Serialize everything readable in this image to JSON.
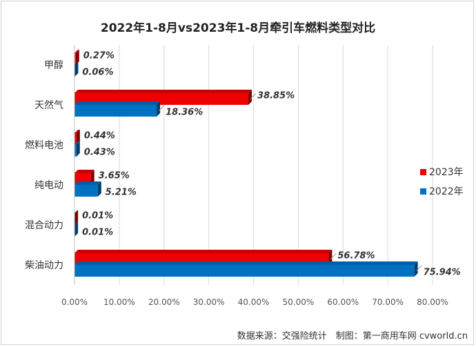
{
  "chart_data": {
    "type": "bar",
    "orientation": "horizontal",
    "title": "2022年1-8月vs2023年1-8月牵引车燃料类型对比",
    "categories": [
      "甲醇",
      "天然气",
      "燃料电池",
      "纯电动",
      "混合动力",
      "柴油动力"
    ],
    "series": [
      {
        "name": "2023年",
        "color": "#ee0000",
        "values": [
          0.27,
          38.85,
          0.44,
          3.65,
          0.01,
          56.78
        ],
        "labels": [
          "0.27%",
          "38.85%",
          "0.44%",
          "3.65%",
          "0.01%",
          "56.78%"
        ]
      },
      {
        "name": "2022年",
        "color": "#0070c0",
        "values": [
          0.06,
          18.36,
          0.43,
          5.21,
          0.01,
          75.94
        ],
        "labels": [
          "0.06%",
          "18.36%",
          "0.43%",
          "5.21%",
          "0.01%",
          "75.94%"
        ]
      }
    ],
    "xlim": [
      0,
      80
    ],
    "xticks": [
      "0.00%",
      "10.00%",
      "20.00%",
      "30.00%",
      "40.00%",
      "50.00%",
      "60.00%",
      "70.00%",
      "80.00%"
    ],
    "grid": true,
    "legend": "right"
  },
  "source_text": "数据来源：交强险统计　制图：第一商用车网 cvworld.cn"
}
